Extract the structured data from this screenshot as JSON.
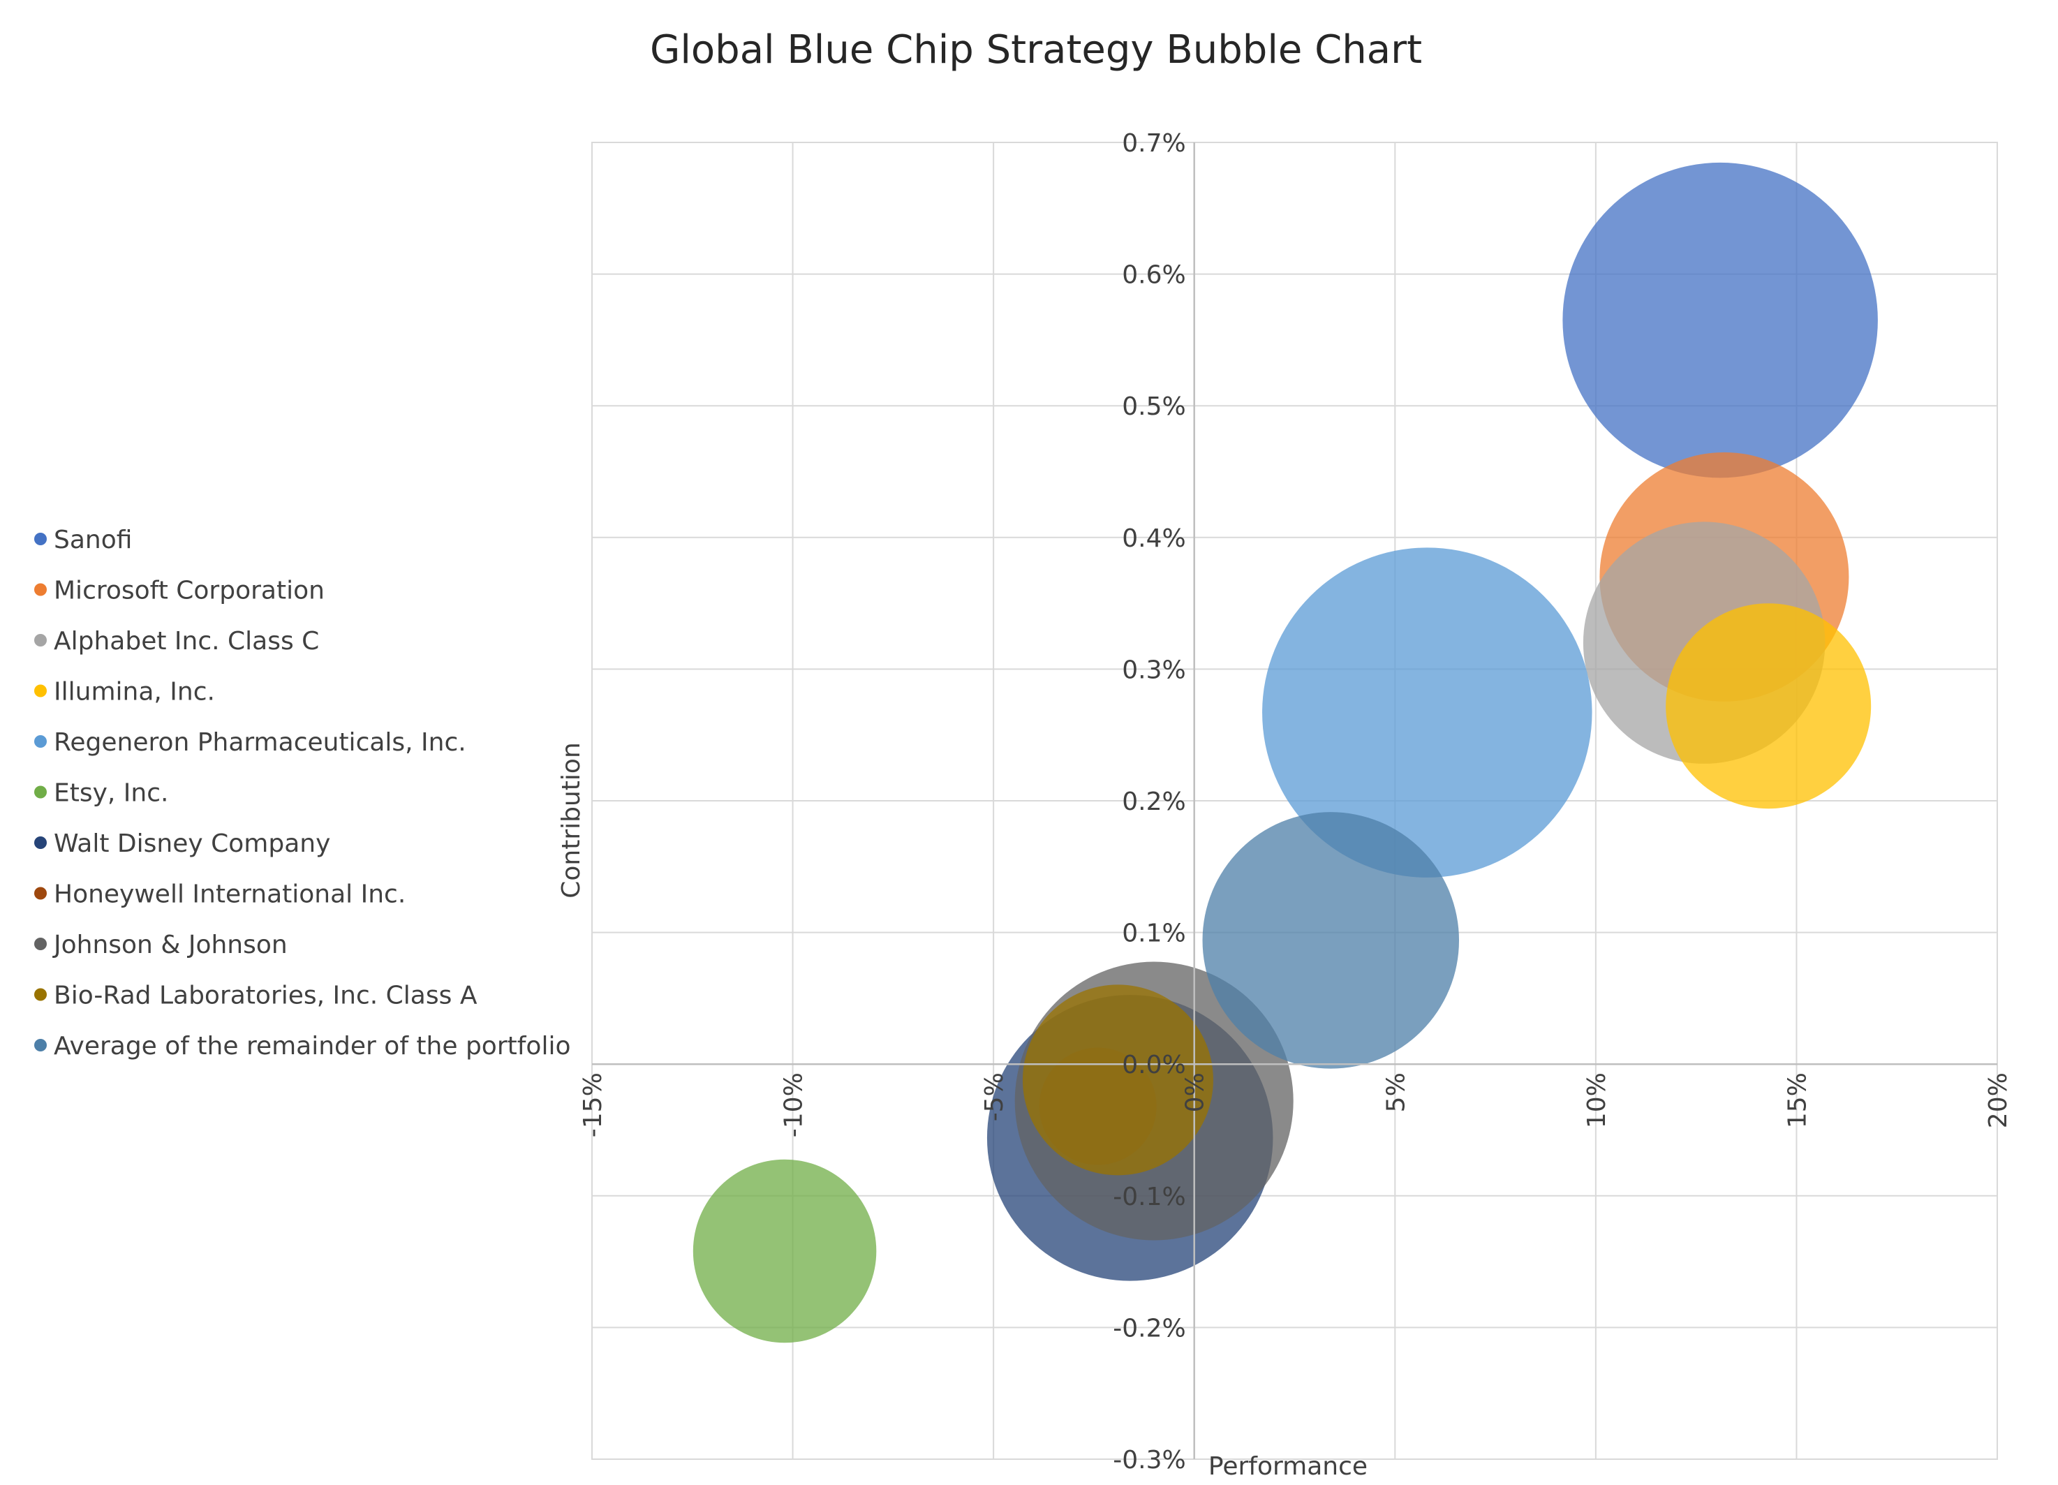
{
  "chart_data": {
    "type": "bubble",
    "title": "Global Blue Chip Strategy Bubble Chart",
    "xlabel": "Performance",
    "ylabel": "Contribution",
    "xlim": [
      -15,
      20
    ],
    "ylim": [
      -0.3,
      0.7
    ],
    "x_ticks": [
      -15,
      -10,
      -5,
      0,
      5,
      10,
      15,
      20
    ],
    "x_tick_labels": [
      "-15%",
      "-10%",
      "-5%",
      "0%",
      "5%",
      "10%",
      "15%",
      "20%"
    ],
    "y_ticks": [
      0.7,
      0.6,
      0.5,
      0.4,
      0.3,
      0.2,
      0.1,
      0.0,
      -0.1,
      -0.2,
      -0.3
    ],
    "y_tick_labels": [
      "0.7%",
      "0.6%",
      "0.5%",
      "0.4%",
      "0.3%",
      "0.2%",
      "0.1%",
      "0.0%",
      "-0.1%",
      "-0.2%",
      "-0.3%"
    ],
    "grid": true,
    "legend_position": "left",
    "series": [
      {
        "name": "Sanofi",
        "x": 13.1,
        "y": 0.565,
        "size": 4.3,
        "color": "#4472C4"
      },
      {
        "name": "Microsoft Corporation",
        "x": 13.2,
        "y": 0.37,
        "size": 3.4,
        "color": "#ED7D31"
      },
      {
        "name": "Alphabet Inc. Class C",
        "x": 12.7,
        "y": 0.32,
        "size": 3.3,
        "color": "#A5A5A5"
      },
      {
        "name": "Illumina, Inc.",
        "x": 14.3,
        "y": 0.272,
        "size": 2.8,
        "color": "#FFC000"
      },
      {
        "name": "Regeneron Pharmaceuticals, Inc.",
        "x": 5.8,
        "y": 0.267,
        "size": 4.5,
        "color": "#5B9BD5"
      },
      {
        "name": "Etsy, Inc.",
        "x": -10.2,
        "y": -0.142,
        "size": 2.5,
        "color": "#70AD47"
      },
      {
        "name": "Walt Disney Company",
        "x": -1.6,
        "y": -0.056,
        "size": 3.9,
        "color": "#264478"
      },
      {
        "name": "Honeywell International Inc.",
        "x": -2.4,
        "y": -0.032,
        "size": 1.6,
        "color": "#9E480E"
      },
      {
        "name": "Johnson & Johnson",
        "x": -1.0,
        "y": -0.028,
        "size": 3.8,
        "color": "#636363"
      },
      {
        "name": "Bio-Rad Laboratories, Inc. Class A",
        "x": -1.9,
        "y": -0.012,
        "size": 2.6,
        "color": "#997300"
      },
      {
        "name": "Average of the remainder of the portfolio",
        "x": 3.4,
        "y": 0.094,
        "size": 3.5,
        "color": "#4D7FA8"
      }
    ]
  }
}
